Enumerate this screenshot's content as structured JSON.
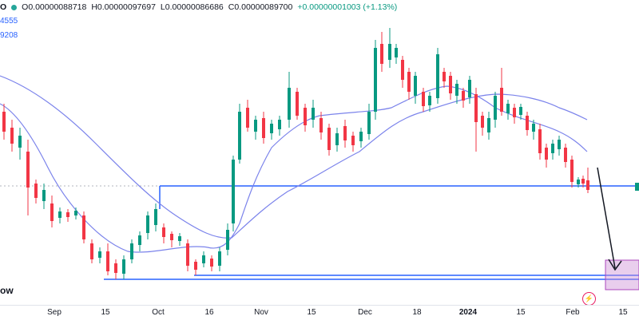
{
  "legend": {
    "symbol": "O",
    "open": "O0.00000088718",
    "high": "H0.00000097697",
    "low": "L0.00000086686",
    "close": "C0.00000089700",
    "change": "+0.00000001003 (+1.13%)"
  },
  "ma_labels": [
    "4555",
    "9208"
  ],
  "watermark": "ow",
  "x_axis": {
    "ticks": [
      "Sep",
      "15",
      "Oct",
      "16",
      "Nov",
      "15",
      "Dec",
      "18",
      "2024",
      "15",
      "Feb",
      "15"
    ]
  },
  "colors": {
    "up": "#089981",
    "down": "#f23645",
    "ma": "#7b83eb",
    "hline": "#2962ff",
    "zone": "#ce93d8"
  },
  "icons": [
    "tradingview-logo-icon"
  ]
}
